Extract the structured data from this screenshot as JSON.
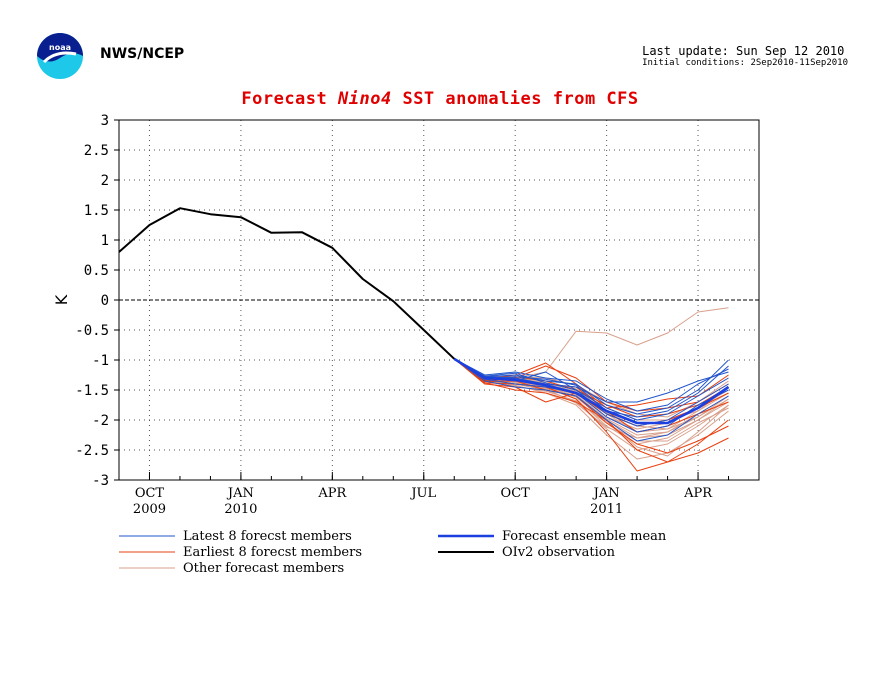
{
  "header": {
    "org": "NWS/NCEP",
    "last_update": "Last update: Sun Sep 12 2010",
    "initial_conditions": "Initial conditions: 2Sep2010-11Sep2010"
  },
  "colors": {
    "observation": "#000000",
    "ensemble_mean": "#1c3fe0",
    "latest": "#2255cc",
    "earliest": "#e84010",
    "other": "#d9a08c",
    "title": "#e00000"
  },
  "chart_data": {
    "type": "line",
    "title_parts": [
      "Forecast",
      "Nino4",
      "SST anomalies from CFS"
    ],
    "ylabel": "K",
    "xlabel": "",
    "ylim": [
      -3,
      3
    ],
    "yticks": [
      "3",
      "2.5",
      "2",
      "1.5",
      "1",
      "0.5",
      "0",
      "-0.5",
      "-1",
      "-1.5",
      "-2",
      "-2.5",
      "-3"
    ],
    "month_index_range": [
      0,
      21
    ],
    "xticks": [
      {
        "m": 1,
        "label": "OCT",
        "year": "2009"
      },
      {
        "m": 4,
        "label": "JAN",
        "year": "2010"
      },
      {
        "m": 7,
        "label": "APR",
        "year": ""
      },
      {
        "m": 10,
        "label": "JUL",
        "year": ""
      },
      {
        "m": 13,
        "label": "OCT",
        "year": ""
      },
      {
        "m": 16,
        "label": "JAN",
        "year": "2011"
      },
      {
        "m": 19,
        "label": "APR",
        "year": ""
      }
    ],
    "observation": {
      "name": "OIv2 observation",
      "x": [
        0,
        1,
        2,
        3,
        4,
        5,
        6,
        7,
        8,
        9,
        10,
        11
      ],
      "y": [
        0.8,
        1.25,
        1.53,
        1.43,
        1.38,
        1.12,
        1.13,
        0.87,
        0.35,
        -0.02,
        -0.5,
        -0.98
      ]
    },
    "ensemble_mean": {
      "name": "Forecast ensemble mean",
      "x": [
        11,
        12,
        13,
        14,
        15,
        16,
        17,
        18,
        19,
        20
      ],
      "y": [
        -0.98,
        -1.3,
        -1.33,
        -1.42,
        -1.55,
        -1.85,
        -2.05,
        -2.05,
        -1.8,
        -1.45
      ]
    },
    "latest_members": {
      "name": "Latest 8 forecst members",
      "x": [
        11,
        12,
        13,
        14,
        15,
        16,
        17,
        18,
        19,
        20
      ],
      "members": [
        [
          -0.98,
          -1.28,
          -1.25,
          -1.35,
          -1.4,
          -1.75,
          -1.9,
          -1.8,
          -1.5,
          -1.0
        ],
        [
          -0.98,
          -1.25,
          -1.2,
          -1.3,
          -1.35,
          -1.65,
          -1.85,
          -1.75,
          -1.4,
          -1.15
        ],
        [
          -0.98,
          -1.3,
          -1.35,
          -1.2,
          -1.5,
          -1.8,
          -2.0,
          -1.9,
          -1.6,
          -1.3
        ],
        [
          -0.98,
          -1.32,
          -1.4,
          -1.45,
          -1.55,
          -1.95,
          -2.2,
          -2.1,
          -1.75,
          -1.5
        ],
        [
          -0.98,
          -1.28,
          -1.3,
          -1.4,
          -1.45,
          -1.7,
          -1.7,
          -1.55,
          -1.35,
          -1.2
        ],
        [
          -0.98,
          -1.35,
          -1.45,
          -1.5,
          -1.6,
          -2.0,
          -2.35,
          -2.25,
          -1.9,
          -1.6
        ],
        [
          -0.98,
          -1.27,
          -1.22,
          -1.38,
          -1.5,
          -1.9,
          -2.1,
          -2.0,
          -1.7,
          -1.4
        ],
        [
          -0.98,
          -1.3,
          -1.28,
          -1.32,
          -1.42,
          -1.85,
          -1.95,
          -1.85,
          -1.55,
          -1.1
        ]
      ]
    },
    "earliest_members": {
      "name": "Earliest 8 forecst members",
      "x": [
        11,
        12,
        13,
        14,
        15,
        16,
        17,
        18,
        19,
        20
      ],
      "members": [
        [
          -0.98,
          -1.35,
          -1.3,
          -1.1,
          -1.3,
          -1.7,
          -1.85,
          -1.8,
          -1.7,
          -1.4
        ],
        [
          -0.98,
          -1.38,
          -1.4,
          -1.45,
          -1.65,
          -2.2,
          -2.85,
          -2.7,
          -2.55,
          -2.3
        ],
        [
          -0.98,
          -1.4,
          -1.45,
          -1.7,
          -1.55,
          -1.9,
          -2.1,
          -2.0,
          -1.8,
          -1.55
        ],
        [
          -0.98,
          -1.32,
          -1.25,
          -1.05,
          -1.4,
          -1.8,
          -1.75,
          -1.65,
          -1.6,
          -1.25
        ],
        [
          -0.98,
          -1.36,
          -1.35,
          -1.5,
          -1.6,
          -2.05,
          -2.4,
          -2.55,
          -2.35,
          -2.1
        ],
        [
          -0.98,
          -1.34,
          -1.32,
          -1.4,
          -1.45,
          -1.85,
          -2.2,
          -2.1,
          -1.9,
          -1.7
        ],
        [
          -0.98,
          -1.38,
          -1.5,
          -1.55,
          -1.7,
          -2.0,
          -2.5,
          -2.7,
          -2.4,
          -2.0
        ],
        [
          -0.98,
          -1.33,
          -1.28,
          -1.35,
          -1.5,
          -1.75,
          -1.95,
          -1.9,
          -1.75,
          -1.45
        ]
      ]
    },
    "other_members": {
      "name": "Other forecast members",
      "x": [
        11,
        12,
        13,
        14,
        15,
        16,
        17,
        18,
        19,
        20
      ],
      "members": [
        [
          -0.98,
          -1.3,
          -1.3,
          -1.2,
          -0.52,
          -0.55,
          -0.75,
          -0.55,
          -0.2,
          -0.13
        ],
        [
          -0.98,
          -1.28,
          -1.35,
          -1.45,
          -1.6,
          -2.0,
          -2.3,
          -2.2,
          -1.9,
          -1.6
        ],
        [
          -0.98,
          -1.32,
          -1.4,
          -1.5,
          -1.7,
          -2.15,
          -2.5,
          -2.4,
          -2.1,
          -1.75
        ],
        [
          -0.98,
          -1.3,
          -1.38,
          -1.48,
          -1.55,
          -1.9,
          -2.2,
          -2.15,
          -1.95,
          -1.65
        ],
        [
          -0.98,
          -1.27,
          -1.3,
          -1.35,
          -1.5,
          -1.8,
          -2.0,
          -2.0,
          -1.85,
          -1.55
        ],
        [
          -0.98,
          -1.35,
          -1.42,
          -1.55,
          -1.75,
          -2.25,
          -2.65,
          -2.55,
          -2.25,
          -1.85
        ],
        [
          -0.98,
          -1.29,
          -1.33,
          -1.4,
          -1.52,
          -1.95,
          -2.15,
          -2.05,
          -1.8,
          -1.5
        ],
        [
          -0.98,
          -1.31,
          -1.36,
          -1.46,
          -1.65,
          -2.1,
          -2.4,
          -2.3,
          -2.0,
          -1.7
        ],
        [
          -0.98,
          -1.26,
          -1.28,
          -1.3,
          -1.42,
          -1.7,
          -1.9,
          -1.95,
          -1.7,
          -1.35
        ],
        [
          -0.98,
          -1.33,
          -1.44,
          -1.52,
          -1.68,
          -2.05,
          -2.35,
          -2.35,
          -2.05,
          -1.8
        ],
        [
          -0.98,
          -1.3,
          -1.34,
          -1.42,
          -1.58,
          -1.98,
          -2.25,
          -2.2,
          -1.95,
          -1.6
        ],
        [
          -0.98,
          -1.28,
          -1.32,
          -1.44,
          -1.62,
          -2.02,
          -2.45,
          -2.6,
          -2.2,
          -1.75
        ],
        [
          -0.98,
          -1.32,
          -1.3,
          -1.38,
          -1.48,
          -1.88,
          -2.1,
          -2.15,
          -1.85,
          -1.45
        ],
        [
          -0.98,
          -1.34,
          -1.4,
          -1.48,
          -1.72,
          -2.12,
          -2.3,
          -2.25,
          -2.0,
          -1.65
        ]
      ]
    },
    "legend": [
      {
        "label": "Latest 8 forecst members",
        "series": "latest"
      },
      {
        "label": "Earliest 8 forecst members",
        "series": "earliest"
      },
      {
        "label": "Other forecast members",
        "series": "other"
      },
      {
        "label": "Forecast ensemble mean",
        "series": "ensemble_mean"
      },
      {
        "label": "OIv2 observation",
        "series": "observation"
      }
    ],
    "grid": true,
    "legend_placement": "below"
  }
}
